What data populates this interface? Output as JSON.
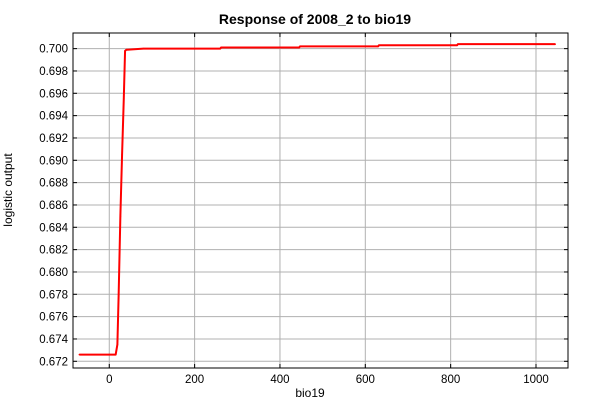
{
  "chart_data": {
    "type": "line",
    "title": "Response of 2008_2 to bio19",
    "xlabel": "bio19",
    "ylabel": "logistic output",
    "xlim": [
      -85,
      1075
    ],
    "ylim": [
      0.6714,
      0.7014
    ],
    "xticks": [
      0,
      200,
      400,
      600,
      800,
      1000
    ],
    "yticks": [
      0.672,
      0.674,
      0.676,
      0.678,
      0.68,
      0.682,
      0.684,
      0.686,
      0.688,
      0.69,
      0.692,
      0.694,
      0.696,
      0.698,
      0.7
    ],
    "ytick_labels": [
      "0.672",
      "0.674",
      "0.676",
      "0.678",
      "0.680",
      "0.682",
      "0.684",
      "0.686",
      "0.688",
      "0.690",
      "0.692",
      "0.694",
      "0.696",
      "0.698",
      "0.700"
    ],
    "grid": true,
    "series": [
      {
        "color": "#ff0000",
        "x": [
          -70,
          0,
          15,
          19,
          22,
          26,
          30,
          34,
          37,
          40,
          80,
          260,
          262,
          445,
          447,
          630,
          632,
          815,
          817,
          1045
        ],
        "y": [
          0.6726,
          0.6726,
          0.6726,
          0.6735,
          0.678,
          0.685,
          0.6905,
          0.6955,
          0.6998,
          0.6999,
          0.7,
          0.7,
          0.7001,
          0.7001,
          0.7002,
          0.7002,
          0.7003,
          0.7003,
          0.7004,
          0.7004
        ]
      }
    ]
  }
}
